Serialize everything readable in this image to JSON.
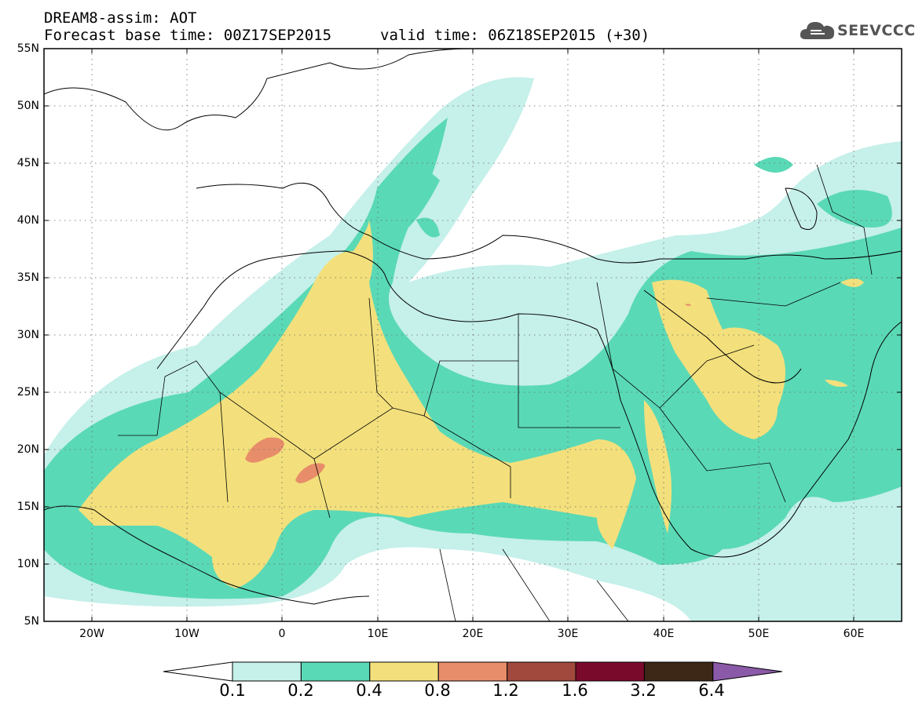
{
  "header": {
    "title_line1": "DREAM8-assim: AOT",
    "forecast_base": "Forecast base time: 00Z17SEP2015",
    "valid_time": "valid time: 06Z18SEP2015 (+30)"
  },
  "logo": {
    "text": "SEEVCCC",
    "icon": "cloud-icon"
  },
  "map": {
    "variable": "AOT",
    "lon_range": [
      -25,
      65
    ],
    "lat_range": [
      5,
      55
    ],
    "grid": true,
    "lat_labels": [
      "55N",
      "50N",
      "45N",
      "40N",
      "35N",
      "30N",
      "25N",
      "20N",
      "15N",
      "10N",
      "5N"
    ],
    "lon_labels": [
      "20W",
      "10W",
      "0",
      "10E",
      "20E",
      "30E",
      "40E",
      "50E",
      "60E"
    ]
  },
  "colorbar": {
    "levels": [
      "0.1",
      "0.2",
      "0.4",
      "0.8",
      "1.2",
      "1.6",
      "3.2",
      "6.4"
    ],
    "colors": [
      "#ffffff",
      "#c6f0ea",
      "#5ad9b6",
      "#f3e07c",
      "#e88d6a",
      "#a2493d",
      "#7a0a2c",
      "#3d2716",
      "#8a5aa8"
    ]
  }
}
